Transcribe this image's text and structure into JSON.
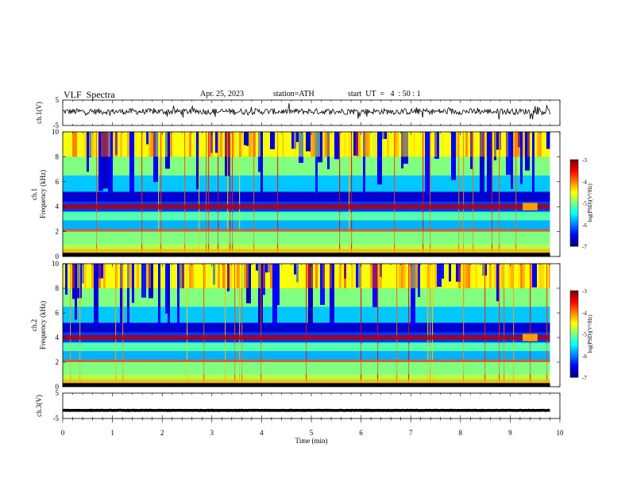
{
  "header": {
    "title": "VLF  Spectra",
    "date": "Apr. 25, 2023",
    "station": "station=ATH",
    "start": "start  UT  =   4  : 50 : 1"
  },
  "chart_data": [
    {
      "type": "line",
      "panel": "ch1-waveform",
      "ylabel": "ch.1(V)",
      "ylim": [
        -5,
        5
      ],
      "ytick_labels": [
        "5",
        "-5"
      ],
      "baseline": 0.5,
      "amplitude": 1.2,
      "x_range_min": [
        0,
        9.8
      ]
    },
    {
      "type": "heatmap",
      "panel": "ch1-spectrogram",
      "ylabel": "ch.1\nFrequency  (kHz)",
      "ylabel_line1": "ch.1",
      "ylabel_line2": "Frequency  (kHz)",
      "ylim": [
        0,
        10
      ],
      "ytick_labels": [
        "0",
        "2",
        "4",
        "6",
        "8",
        "10"
      ],
      "colorbar": {
        "label": "log(PSD)(V²/Hz)",
        "range": [
          -7,
          -3
        ],
        "tick_labels": [
          "-3",
          "-4",
          "-5",
          "-6",
          "-7"
        ]
      },
      "bands_khz": [
        [
          0.3,
          0.6,
          "high"
        ],
        [
          1.0,
          2.0,
          "mid"
        ],
        [
          2.0,
          2.2,
          "line"
        ],
        [
          2.9,
          3.5,
          "mid"
        ],
        [
          3.8,
          4.2,
          "hot"
        ]
      ]
    },
    {
      "type": "heatmap",
      "panel": "ch2-spectrogram",
      "ylabel": "ch.2\nFrequency  (kHz)",
      "ylabel_line1": "ch.2",
      "ylabel_line2": "Frequency  (kHz)",
      "ylim": [
        0,
        10
      ],
      "ytick_labels": [
        "0",
        "2",
        "4",
        "6",
        "8",
        "10"
      ],
      "colorbar": {
        "label": "log(PSD)(V²/Hz)",
        "range": [
          -7,
          -3
        ],
        "tick_labels": [
          "-3",
          "-4",
          "-5",
          "-6",
          "-7"
        ]
      },
      "bands_khz": [
        [
          0.3,
          0.6,
          "high"
        ],
        [
          1.0,
          2.0,
          "mid"
        ],
        [
          2.0,
          2.2,
          "line"
        ],
        [
          2.9,
          3.5,
          "mid"
        ],
        [
          3.8,
          4.2,
          "hot"
        ]
      ]
    },
    {
      "type": "line",
      "panel": "ch3-waveform",
      "ylabel": "ch.3(V)",
      "ylim": [
        -5,
        5
      ],
      "ytick_labels": [
        "5",
        "-5"
      ],
      "baseline": -1.8,
      "amplitude": 0.08,
      "x_range_min": [
        0,
        9.8
      ]
    }
  ],
  "xaxis": {
    "label": "Time  (min)",
    "range": [
      0,
      10
    ],
    "tick_labels": [
      "0",
      "1",
      "2",
      "3",
      "4",
      "5",
      "6",
      "7",
      "8",
      "9",
      "10"
    ]
  }
}
